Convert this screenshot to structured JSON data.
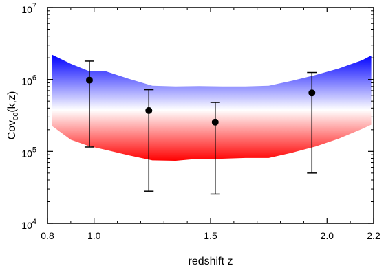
{
  "chart_data": {
    "type": "scatter",
    "title": "",
    "xlabel": "redshift z",
    "ylabel_main": "Cov",
    "ylabel_sub": "00",
    "ylabel_tail": "(k,z)",
    "xlim": [
      0.8,
      2.2
    ],
    "ylim": [
      10000,
      10000000
    ],
    "yscale": "log",
    "grid": false,
    "x_ticks": [
      {
        "value": 0.8,
        "label": "0.8"
      },
      {
        "value": 1.0,
        "label": "1.0"
      },
      {
        "value": 1.5,
        "label": "1.5"
      },
      {
        "value": 2.0,
        "label": "2.0"
      },
      {
        "value": 2.2,
        "label": "2.2"
      }
    ],
    "y_ticks": [
      {
        "value": 10000,
        "base": "10",
        "exp": "4"
      },
      {
        "value": 100000,
        "base": "10",
        "exp": "5"
      },
      {
        "value": 1000000,
        "base": "10",
        "exp": "6"
      },
      {
        "value": 10000000,
        "base": "10",
        "exp": "7"
      }
    ],
    "colors": {
      "band_upper": "#0000ff",
      "band_middle": "#ffffff",
      "band_lower": "#ff0000",
      "points": "#000000"
    },
    "band": {
      "z": [
        0.82,
        0.9,
        0.98,
        1.05,
        1.15,
        1.25,
        1.35,
        1.45,
        1.55,
        1.65,
        1.75,
        1.85,
        1.95,
        2.05,
        2.15,
        2.19
      ],
      "upper": [
        2200000,
        1650000,
        1300000,
        1300000,
        1020000,
        820000,
        800000,
        810000,
        800000,
        800000,
        820000,
        960000,
        1150000,
        1420000,
        1850000,
        2150000
      ],
      "lower": [
        225000,
        145000,
        118000,
        105000,
        88000,
        75000,
        74000,
        79000,
        79000,
        81000,
        81000,
        96000,
        117000,
        150000,
        205000,
        235000
      ]
    },
    "points": [
      {
        "x": 0.98,
        "y": 980000,
        "err_low": 115000,
        "err_high": 1800000
      },
      {
        "x": 1.235,
        "y": 370000,
        "err_low": 28000,
        "err_high": 720000
      },
      {
        "x": 1.52,
        "y": 255000,
        "err_low": 25500,
        "err_high": 480000
      },
      {
        "x": 1.935,
        "y": 650000,
        "err_low": 50000,
        "err_high": 1250000
      }
    ]
  }
}
